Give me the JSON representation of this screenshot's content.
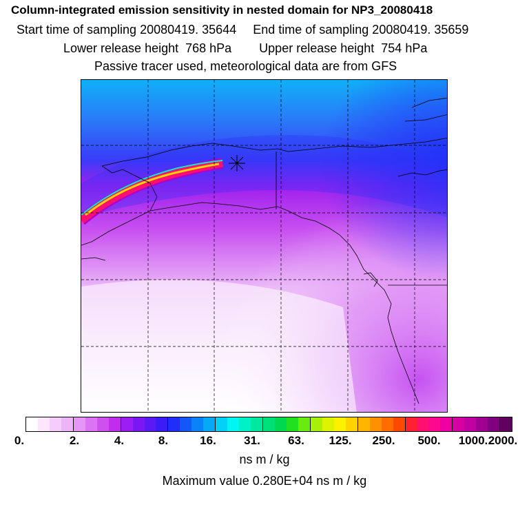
{
  "header": {
    "title": "Column-integrated emission sensitivity in nested domain for NP3_20080418",
    "start_label": "Start time of sampling 20080419. 35644",
    "end_label": "End time of sampling 20080419. 35659",
    "lower_release": "Lower release height  768 hPa",
    "upper_release": "Upper release height  754 hPa",
    "tracer_note": "Passive tracer used, meteorological data are from GFS"
  },
  "colorbar": {
    "colors": [
      "#ffffff",
      "#fbe6fd",
      "#f5ccfb",
      "#eeb4f8",
      "#e597f5",
      "#da74f2",
      "#cf50ef",
      "#c22cec",
      "#9b1ef2",
      "#7a18f4",
      "#5a1af6",
      "#3a1cf7",
      "#1f2ef8",
      "#1258f8",
      "#0a82f8",
      "#06a8f8",
      "#04d0f8",
      "#00f6f0",
      "#00f0c8",
      "#00e8a0",
      "#00e078",
      "#00d850",
      "#20e020",
      "#68ec10",
      "#a8f008",
      "#dcf400",
      "#fff000",
      "#ffd200",
      "#ffb400",
      "#ff9000",
      "#ff6c00",
      "#ff4800",
      "#ff2030",
      "#ff1070",
      "#ff0890",
      "#f000a0",
      "#d800a0",
      "#c000a0",
      "#a00090",
      "#800080",
      "#600060"
    ],
    "tick_labels": [
      "0.",
      "2.",
      "4.",
      "8.",
      "16.",
      "31.",
      "63.",
      "125.",
      "250.",
      "500.",
      "1000.",
      "2000."
    ],
    "unit": "ns m / kg",
    "max_value": "Maximum value  0.280E+04 ns m / kg"
  },
  "map": {
    "receptor_marker": "x-cross",
    "plume_colors": [
      "#ff1070",
      "#ffd200",
      "#00f0c8"
    ],
    "field_colors": {
      "high": "#1a3cf8",
      "mid": "#b020ee",
      "low": "#e8a8f8",
      "ocean_top": "#10b0f8"
    }
  }
}
